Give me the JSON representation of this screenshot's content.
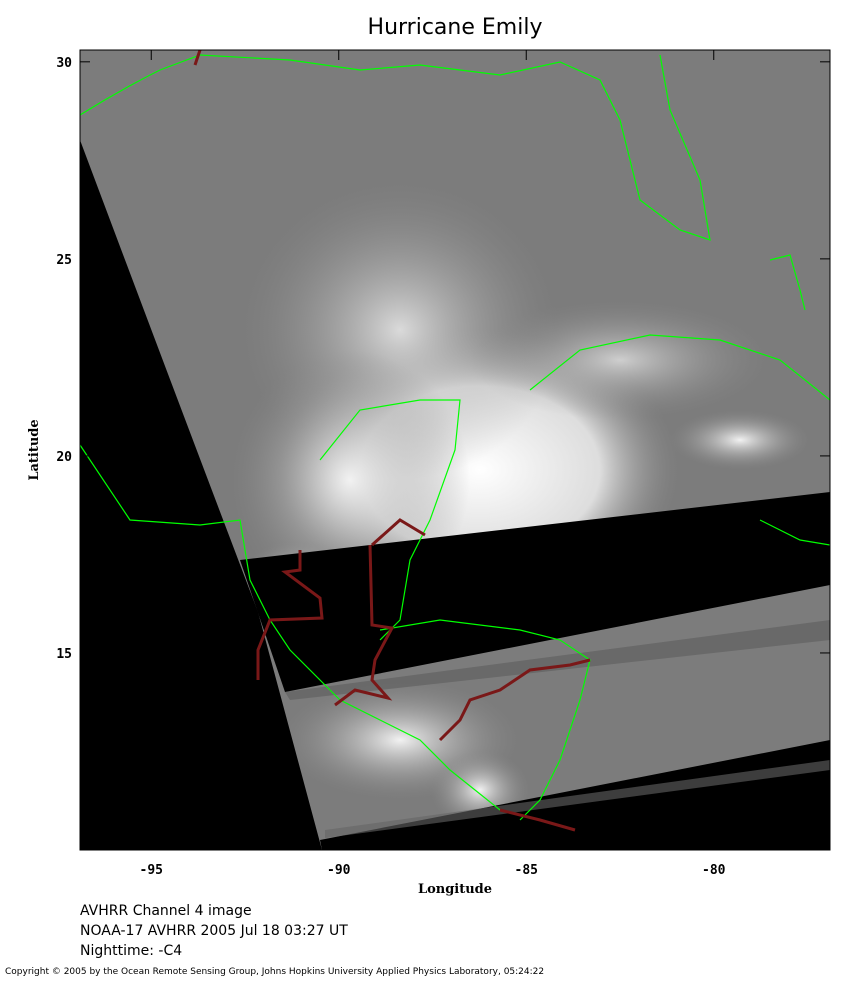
{
  "header": {
    "title": "Hurricane Emily"
  },
  "map": {
    "x_label": "Longitude",
    "y_label": "Latitude",
    "xlim": [
      -96.9,
      -76.9
    ],
    "ylim": [
      10,
      30.3
    ],
    "xticks": [
      -95,
      -90,
      -85,
      -80
    ],
    "yticks": [
      15,
      20,
      25,
      30
    ]
  },
  "captions": [
    "AVHRR Channel 4 image",
    "NOAA-17 AVHRR 2005 Jul 18 03:27 UT",
    "Nighttime: -C4"
  ],
  "footer": {
    "copyright": "Copyright © 2005 by the Ocean Remote Sensing Group, Johns Hopkins University Applied Physics Laboratory, 05:24:22"
  }
}
